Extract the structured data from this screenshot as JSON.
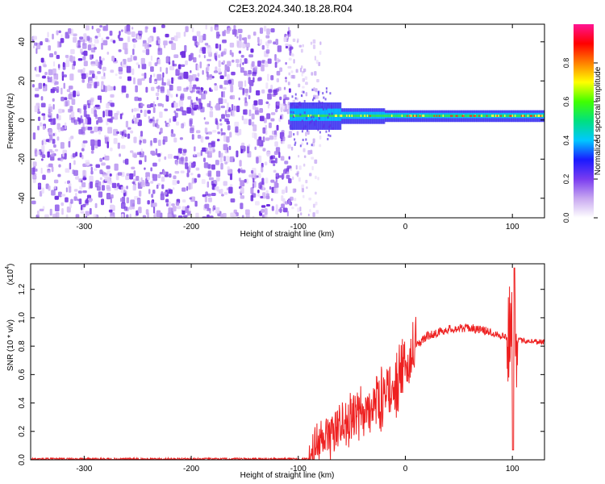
{
  "title": "C2E3.2024.340.18.28.R04",
  "chart_data": [
    {
      "type": "heatmap",
      "name": "spectrogram",
      "xlabel": "Height of straight line (km)",
      "ylabel": "Frequency (Hz)",
      "xlim": [
        -350,
        130
      ],
      "ylim": [
        -50,
        49
      ],
      "xticks": [
        -300,
        -200,
        -100,
        0,
        100
      ],
      "yticks": [
        -40,
        -20,
        0,
        20,
        40
      ],
      "colorbar": {
        "label": "Normalized spectral amplitude",
        "range": [
          0,
          1
        ],
        "ticks": [
          "0.0",
          "0.2",
          "0.4",
          "0.6",
          "0.8"
        ],
        "colors": [
          "#ffffff",
          "#c8a8f0",
          "#7a3cf0",
          "#1a1aff",
          "#00c8ff",
          "#00e080",
          "#40ff00",
          "#ffff00",
          "#ff8000",
          "#ff0000",
          "#ff1493"
        ]
      },
      "signal": {
        "noise_region_x": [
          -350,
          -108
        ],
        "carrier_x": [
          -108,
          130
        ],
        "carrier_freq_hz": 2
      }
    },
    {
      "type": "line",
      "name": "snr",
      "xlabel": "Height of straight line (km)",
      "ylabel": "SNR (10 * v/v)",
      "multiplier": "(x10",
      "multiplier_exp": "4",
      "xlim": [
        -350,
        130
      ],
      "ylim": [
        0,
        1.38
      ],
      "xticks": [
        -300,
        -200,
        -100,
        0,
        100
      ],
      "yticks": [
        "0.0",
        "0.2",
        "0.4",
        "0.6",
        "0.8",
        "1.0",
        "1.2"
      ],
      "line_color": "#ee2020",
      "profile": {
        "x": [
          -350,
          -90,
          -80,
          -60,
          -40,
          -20,
          0,
          10,
          20,
          40,
          60,
          80,
          95,
          100,
          105,
          110,
          130
        ],
        "y": [
          0.005,
          0.005,
          0.1,
          0.25,
          0.32,
          0.45,
          0.62,
          0.8,
          0.87,
          0.92,
          0.93,
          0.9,
          0.86,
          0.9,
          0.84,
          0.84,
          0.83
        ]
      }
    }
  ]
}
